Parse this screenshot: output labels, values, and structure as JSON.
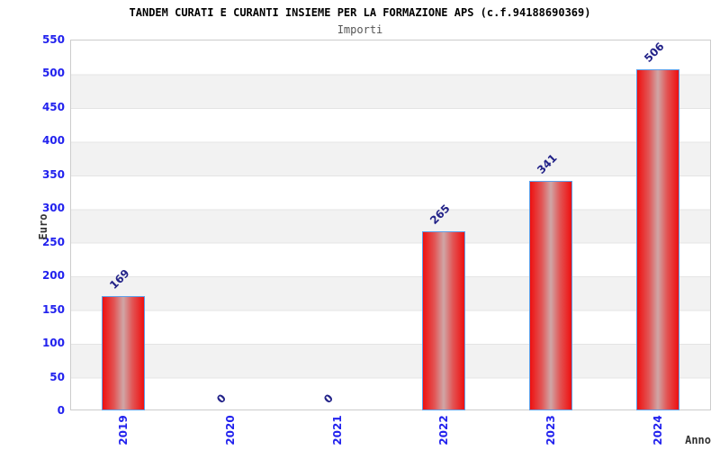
{
  "chart_data": {
    "type": "bar",
    "title": "TANDEM CURATI E CURANTI INSIEME PER LA FORMAZIONE APS (c.f.94188690369)",
    "subtitle": "Importi",
    "xlabel": "Anno",
    "ylabel": "Euro",
    "categories": [
      "2019",
      "2020",
      "2021",
      "2022",
      "2023",
      "2024"
    ],
    "values": [
      169,
      0,
      0,
      265,
      341,
      506
    ],
    "value_labels": [
      "169",
      "0",
      "0",
      "265",
      "341",
      "506"
    ],
    "ylim": [
      0,
      550
    ],
    "ytick_step": 50,
    "ytick_labels": [
      "0",
      "50",
      "100",
      "150",
      "200",
      "250",
      "300",
      "350",
      "400",
      "450",
      "500",
      "550"
    ],
    "grid": "alternating-horizontal-bands",
    "legend": "none"
  },
  "colors": {
    "title": "#000000",
    "subtitle": "#555555",
    "axis_title": "#333333",
    "tick_label": "#2222ee",
    "value_label": "#222288",
    "bar_edge_red": "#ee1010",
    "bar_mid_red": "#e25555",
    "bar_center": "#cfa6a6",
    "bar_border": "#5e9fe8",
    "band_gray": "#f2f2f2",
    "band_line": "#e4e4e4",
    "plot_border": "#cccccc",
    "background": "#ffffff"
  }
}
